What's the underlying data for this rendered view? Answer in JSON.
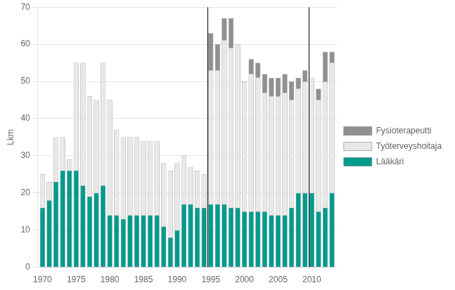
{
  "chart_data": {
    "type": "bar",
    "stacked": true,
    "x": [
      1970,
      1971,
      1972,
      1973,
      1974,
      1975,
      1976,
      1977,
      1978,
      1979,
      1980,
      1981,
      1982,
      1983,
      1984,
      1985,
      1986,
      1987,
      1988,
      1989,
      1990,
      1991,
      1992,
      1993,
      1994,
      1995,
      1996,
      1997,
      1998,
      1999,
      2000,
      2001,
      2002,
      2003,
      2004,
      2005,
      2006,
      2007,
      2008,
      2009,
      2010,
      2011,
      2012,
      2013
    ],
    "series": [
      {
        "name": "Lääkäri",
        "color": "#009B8D",
        "values": [
          16,
          18,
          23,
          26,
          26,
          26,
          22,
          19,
          20,
          22,
          14,
          14,
          13,
          14,
          14,
          14,
          14,
          14,
          11,
          8,
          10,
          17,
          17,
          16,
          16,
          17,
          17,
          17,
          16,
          16,
          15,
          15,
          15,
          15,
          14,
          14,
          14,
          16,
          20,
          20,
          20,
          15,
          16,
          20
        ]
      },
      {
        "name": "Työterveyshoitaja",
        "color": "#E8E8E8",
        "values": [
          9,
          5,
          12,
          9,
          3,
          29,
          33,
          27,
          25,
          33,
          31,
          23,
          22,
          21,
          21,
          20,
          20,
          20,
          17,
          18,
          18,
          13,
          10,
          10,
          9,
          36,
          36,
          44,
          43,
          44,
          35,
          37,
          36,
          32,
          32,
          32,
          33,
          29,
          28,
          30,
          31,
          30,
          34,
          35
        ]
      },
      {
        "name": "Fysioterapeutti",
        "color": "#909090",
        "values": [
          0,
          0,
          0,
          0,
          0,
          0,
          0,
          0,
          0,
          0,
          0,
          0,
          0,
          0,
          0,
          0,
          0,
          0,
          0,
          0,
          0,
          0,
          0,
          0,
          0,
          10,
          7,
          6,
          8,
          0,
          0,
          4,
          4,
          5,
          5,
          5,
          5,
          5,
          3,
          3,
          0,
          3,
          8,
          3
        ]
      }
    ],
    "ylabel": "Lkm",
    "xlim": [
      1969.3,
      2013.7
    ],
    "xticks": [
      1970,
      1975,
      1980,
      1985,
      1990,
      1995,
      2000,
      2005,
      2010
    ],
    "ylim": [
      0,
      70
    ],
    "yticks": [
      0,
      10,
      20,
      30,
      40,
      50,
      60,
      70
    ],
    "vlines": [
      1994.5,
      2009.5
    ],
    "grid": "y",
    "legend": "right"
  }
}
